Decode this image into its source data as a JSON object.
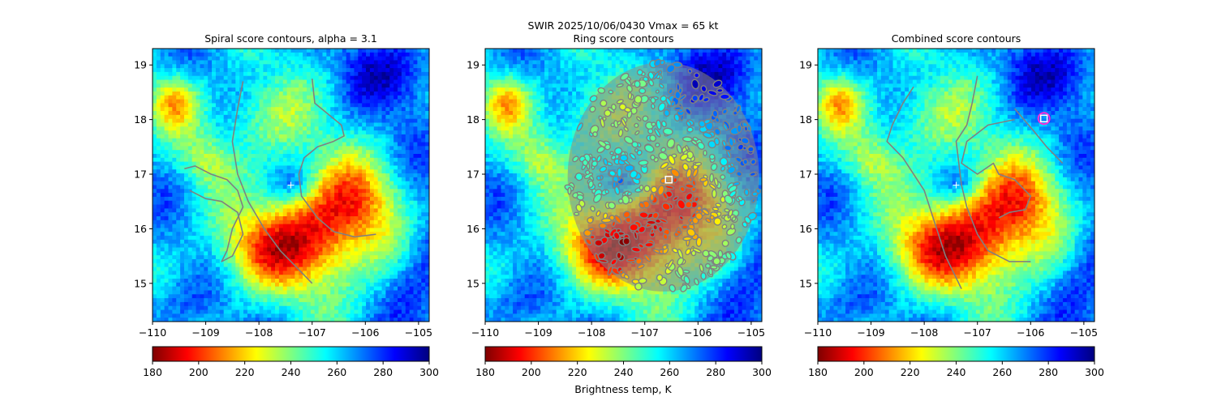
{
  "suptitle_line1": "SWIR  2025/10/06/0430    Vmax = 65 kt",
  "colorbar_label": "Brightness temp, K",
  "chart_data": [
    {
      "type": "heatmap",
      "title": "Spiral score contours, alpha =  3.1",
      "xlim": [
        -110,
        -104.8
      ],
      "ylim": [
        14.3,
        19.3
      ],
      "xticks": [
        -110,
        -109,
        -108,
        -107,
        -106,
        -105
      ],
      "xtick_labels": [
        "−110",
        "−109",
        "−108",
        "−107",
        "−106",
        "−105"
      ],
      "yticks": [
        15,
        16,
        17,
        18,
        19
      ],
      "ytick_labels": [
        "15",
        "16",
        "17",
        "18",
        "19"
      ],
      "center_marker": {
        "lon": -107.4,
        "lat": 16.8,
        "style": "plus"
      },
      "contours": [
        [
          [
            -108.3,
            18.7
          ],
          [
            -108.4,
            18.2
          ],
          [
            -108.5,
            17.6
          ],
          [
            -108.4,
            17.0
          ],
          [
            -108.2,
            16.5
          ],
          [
            -107.9,
            16.0
          ],
          [
            -107.6,
            15.6
          ],
          [
            -107.3,
            15.3
          ],
          [
            -107.0,
            15.0
          ]
        ],
        [
          [
            -109.4,
            17.1
          ],
          [
            -109.2,
            17.15
          ],
          [
            -108.9,
            17.0
          ],
          [
            -108.6,
            16.9
          ],
          [
            -108.4,
            16.7
          ],
          [
            -108.3,
            16.4
          ],
          [
            -108.5,
            16.0
          ],
          [
            -108.6,
            15.6
          ],
          [
            -108.7,
            15.4
          ],
          [
            -108.5,
            15.5
          ],
          [
            -108.3,
            15.9
          ],
          [
            -108.4,
            16.3
          ],
          [
            -108.7,
            16.5
          ],
          [
            -109.0,
            16.55
          ],
          [
            -109.3,
            16.7
          ]
        ],
        [
          [
            -107.0,
            18.75
          ],
          [
            -106.95,
            18.3
          ],
          [
            -106.7,
            18.1
          ],
          [
            -106.45,
            17.9
          ],
          [
            -106.4,
            17.7
          ],
          [
            -106.6,
            17.6
          ],
          [
            -106.9,
            17.5
          ],
          [
            -107.15,
            17.3
          ],
          [
            -107.25,
            17.0
          ],
          [
            -107.2,
            16.6
          ],
          [
            -106.9,
            16.2
          ],
          [
            -106.6,
            15.95
          ],
          [
            -106.2,
            15.85
          ],
          [
            -105.8,
            15.9
          ]
        ]
      ],
      "box_markers": []
    },
    {
      "type": "heatmap",
      "title": "Ring score contours",
      "xlim": [
        -110,
        -104.8
      ],
      "ylim": [
        14.3,
        19.3
      ],
      "xticks": [
        -110,
        -109,
        -108,
        -107,
        -106,
        -105
      ],
      "xtick_labels": [
        "−110",
        "−109",
        "−108",
        "−107",
        "−106",
        "−105"
      ],
      "yticks": [
        15,
        16,
        17,
        18,
        19
      ],
      "ytick_labels": [
        "15",
        "16",
        "17",
        "18",
        "19"
      ],
      "ring_region": {
        "lon": -106.65,
        "lat": 16.95,
        "rx_deg": 1.8,
        "ry_deg": 2.1
      },
      "box_markers": [
        {
          "lon": -106.55,
          "lat": 16.9,
          "color": "#ffffff"
        }
      ]
    },
    {
      "type": "heatmap",
      "title": "Combined score contours",
      "xlim": [
        -110,
        -104.8
      ],
      "ylim": [
        14.3,
        19.3
      ],
      "xticks": [
        -110,
        -109,
        -108,
        -107,
        -106,
        -105
      ],
      "xtick_labels": [
        "−110",
        "−109",
        "−108",
        "−107",
        "−106",
        "−105"
      ],
      "yticks": [
        15,
        16,
        17,
        18,
        19
      ],
      "ytick_labels": [
        "15",
        "16",
        "17",
        "18",
        "19"
      ],
      "center_marker": {
        "lon": -107.4,
        "lat": 16.8,
        "style": "plus"
      },
      "contours": [
        [
          [
            -108.2,
            18.6
          ],
          [
            -108.4,
            18.3
          ],
          [
            -108.6,
            17.9
          ],
          [
            -108.7,
            17.6
          ],
          [
            -108.4,
            17.3
          ],
          [
            -108.0,
            16.7
          ],
          [
            -107.8,
            16.1
          ],
          [
            -107.6,
            15.5
          ],
          [
            -107.3,
            14.9
          ]
        ],
        [
          [
            -107.0,
            18.8
          ],
          [
            -107.1,
            18.3
          ],
          [
            -107.2,
            17.9
          ],
          [
            -107.4,
            17.6
          ],
          [
            -107.35,
            17.2
          ],
          [
            -107.3,
            16.8
          ],
          [
            -107.2,
            16.4
          ],
          [
            -107.0,
            15.9
          ],
          [
            -106.8,
            15.6
          ],
          [
            -106.4,
            15.4
          ],
          [
            -106.0,
            15.4
          ]
        ],
        [
          [
            -106.3,
            18.0
          ],
          [
            -106.8,
            17.9
          ],
          [
            -107.2,
            17.6
          ],
          [
            -107.3,
            17.2
          ],
          [
            -107.0,
            17.0
          ],
          [
            -106.7,
            17.2
          ],
          [
            -106.6,
            17.0
          ],
          [
            -106.3,
            16.9
          ],
          [
            -106.0,
            16.6
          ],
          [
            -106.1,
            16.35
          ],
          [
            -106.4,
            16.3
          ],
          [
            -106.6,
            16.2
          ]
        ],
        [
          [
            -105.4,
            17.2
          ],
          [
            -105.7,
            17.5
          ],
          [
            -105.95,
            17.8
          ],
          [
            -106.3,
            18.2
          ]
        ]
      ],
      "box_markers": [
        {
          "lon": -105.75,
          "lat": 18.02,
          "color": "#ffffff",
          "ring": "#ff2bd6"
        }
      ]
    }
  ],
  "colorbars": [
    {
      "vmin": 180,
      "vmax": 300,
      "ticks": [
        180,
        200,
        220,
        240,
        260,
        280,
        300
      ],
      "tick_labels": [
        "180",
        "200",
        "220",
        "240",
        "260",
        "280",
        "300"
      ],
      "cmap": "jet_r"
    },
    {
      "vmin": 180,
      "vmax": 300,
      "ticks": [
        180,
        200,
        220,
        240,
        260,
        280,
        300
      ],
      "tick_labels": [
        "180",
        "200",
        "220",
        "240",
        "260",
        "280",
        "300"
      ],
      "cmap": "jet_r"
    },
    {
      "vmin": 180,
      "vmax": 300,
      "ticks": [
        180,
        200,
        220,
        240,
        260,
        280,
        300
      ],
      "tick_labels": [
        "180",
        "200",
        "220",
        "240",
        "260",
        "280",
        "300"
      ],
      "cmap": "jet_r"
    }
  ],
  "colors": {
    "contour": "#808080",
    "jet_stops": [
      "#7f0000",
      "#ff0000",
      "#ff7f00",
      "#ffff00",
      "#7fff7f",
      "#00ffff",
      "#007fff",
      "#0000ff",
      "#00007f"
    ]
  }
}
